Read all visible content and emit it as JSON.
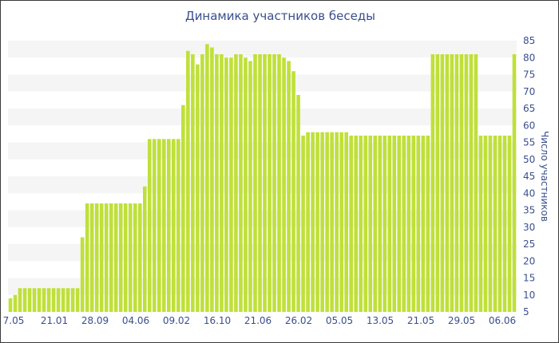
{
  "chart_data": {
    "type": "bar",
    "title": "Динамика участников беседы",
    "ylabel": "Число участников",
    "xlabel": "",
    "ylim": [
      5,
      85
    ],
    "yticks": [
      5,
      10,
      15,
      20,
      25,
      30,
      35,
      40,
      45,
      50,
      55,
      60,
      65,
      70,
      75,
      80,
      85
    ],
    "y_axis_side": "right",
    "x_tick_labels": [
      "7.05",
      "21.01",
      "28.09",
      "04.06",
      "09.02",
      "16.10",
      "21.06",
      "26.02",
      "05.05",
      "13.05",
      "21.05",
      "29.05",
      "06.06"
    ],
    "bar_color": "#bfe03a",
    "band_color": "#f5f5f5",
    "text_color": "#3a4f8c",
    "values": [
      9,
      10,
      12,
      12,
      12,
      12,
      12,
      12,
      12,
      12,
      12,
      12,
      12,
      12,
      12,
      27,
      37,
      37,
      37,
      37,
      37,
      37,
      37,
      37,
      37,
      37,
      37,
      37,
      42,
      56,
      56,
      56,
      56,
      56,
      56,
      56,
      66,
      82,
      81,
      78,
      81,
      84,
      83,
      81,
      81,
      80,
      80,
      81,
      81,
      80,
      79,
      81,
      81,
      81,
      81,
      81,
      81,
      80,
      79,
      76,
      69,
      57,
      58,
      58,
      58,
      58,
      58,
      58,
      58,
      58,
      58,
      57,
      57,
      57,
      57,
      57,
      57,
      57,
      57,
      57,
      57,
      57,
      57,
      57,
      57,
      57,
      57,
      57,
      81,
      81,
      81,
      81,
      81,
      81,
      81,
      81,
      81,
      81,
      57,
      57,
      57,
      57,
      57,
      57,
      57,
      81
    ]
  }
}
